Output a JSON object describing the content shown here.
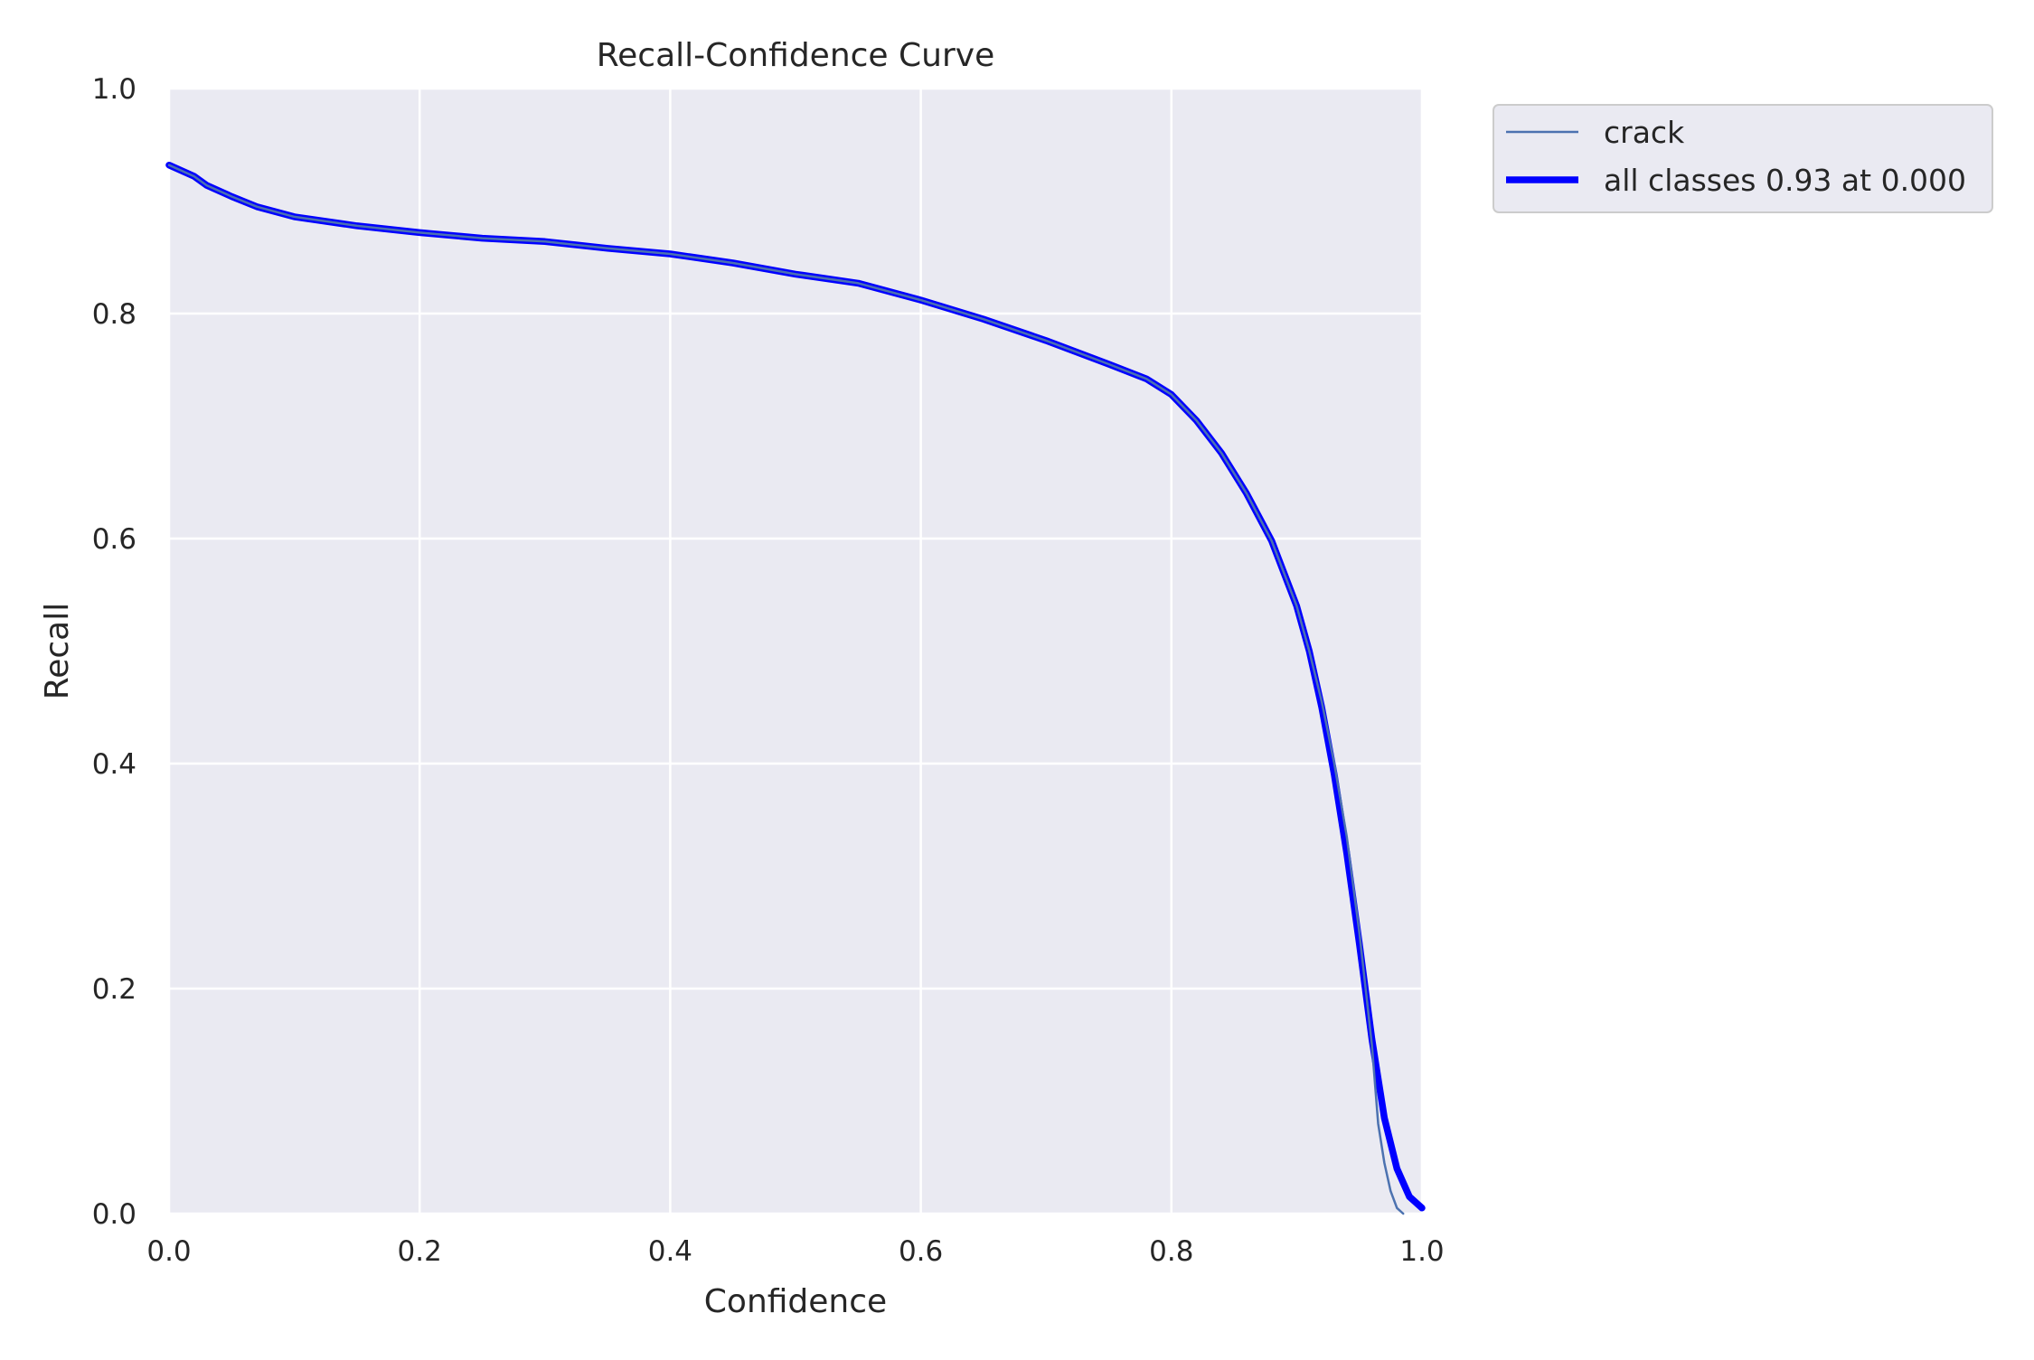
{
  "chart_data": {
    "type": "line",
    "title": "Recall-Confidence Curve",
    "xlabel": "Confidence",
    "ylabel": "Recall",
    "xlim": [
      0,
      1
    ],
    "ylim": [
      0,
      1
    ],
    "xticks": [
      "0.0",
      "0.2",
      "0.4",
      "0.6",
      "0.8",
      "1.0"
    ],
    "yticks": [
      "0.0",
      "0.2",
      "0.4",
      "0.6",
      "0.8",
      "1.0"
    ],
    "grid": true,
    "legend_position": "outside-top-right",
    "background_color": "#eaeaf2",
    "grid_color": "#ffffff",
    "series": [
      {
        "name": "crack",
        "color": "#4c72b0",
        "thickness": "thin",
        "x": [
          0.0,
          0.02,
          0.03,
          0.05,
          0.07,
          0.1,
          0.15,
          0.2,
          0.25,
          0.3,
          0.35,
          0.4,
          0.45,
          0.5,
          0.55,
          0.6,
          0.65,
          0.7,
          0.75,
          0.78,
          0.8,
          0.82,
          0.84,
          0.86,
          0.88,
          0.9,
          0.91,
          0.92,
          0.93,
          0.94,
          0.95,
          0.96,
          0.965,
          0.97,
          0.975,
          0.98,
          0.985
        ],
        "y": [
          0.932,
          0.922,
          0.914,
          0.904,
          0.895,
          0.886,
          0.878,
          0.872,
          0.867,
          0.864,
          0.858,
          0.853,
          0.845,
          0.835,
          0.827,
          0.812,
          0.795,
          0.776,
          0.755,
          0.742,
          0.728,
          0.705,
          0.676,
          0.64,
          0.598,
          0.54,
          0.5,
          0.455,
          0.4,
          0.335,
          0.25,
          0.15,
          0.08,
          0.045,
          0.02,
          0.005,
          0.0
        ]
      },
      {
        "name": "all classes 0.93 at 0.000",
        "color": "#0000ff",
        "thickness": "thick",
        "x": [
          0.0,
          0.02,
          0.03,
          0.05,
          0.07,
          0.1,
          0.15,
          0.2,
          0.25,
          0.3,
          0.35,
          0.4,
          0.45,
          0.5,
          0.55,
          0.6,
          0.65,
          0.7,
          0.75,
          0.78,
          0.8,
          0.82,
          0.84,
          0.86,
          0.88,
          0.9,
          0.91,
          0.92,
          0.93,
          0.94,
          0.95,
          0.96,
          0.97,
          0.98,
          0.99,
          1.0
        ],
        "y": [
          0.932,
          0.922,
          0.914,
          0.904,
          0.895,
          0.886,
          0.878,
          0.872,
          0.867,
          0.864,
          0.858,
          0.853,
          0.845,
          0.835,
          0.827,
          0.812,
          0.795,
          0.776,
          0.755,
          0.742,
          0.728,
          0.705,
          0.676,
          0.64,
          0.598,
          0.54,
          0.5,
          0.45,
          0.39,
          0.32,
          0.24,
          0.155,
          0.085,
          0.04,
          0.015,
          0.005
        ]
      }
    ]
  }
}
